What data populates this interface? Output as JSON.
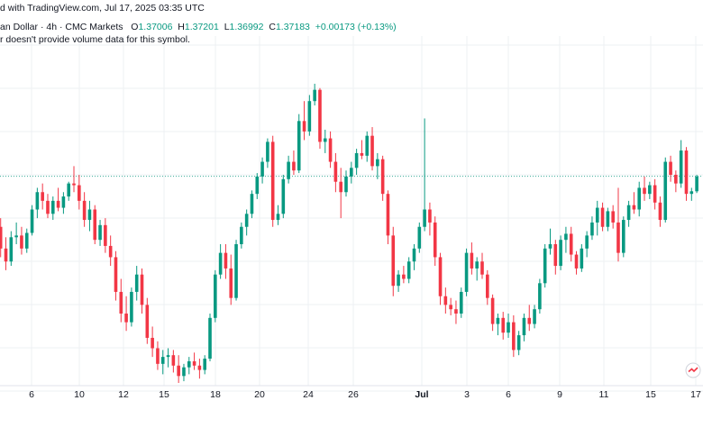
{
  "header": {
    "symbol_fragment": "an Dollar · 4h · CMC Markets",
    "published": "d with TradingView.com, Jul 17, 2025 03:35 UTC",
    "o_label": "O",
    "o_value": "1.37006",
    "h_label": "H",
    "h_value": "1.37201",
    "l_label": "L",
    "l_value": "1.36992",
    "c_label": "C",
    "c_value": "1.37183",
    "change": "+0.00173 (+0.13%)",
    "volume_note": "r doesn't provide volume data for this symbol."
  },
  "colors": {
    "up": "#089981",
    "down": "#f23645",
    "grid": "#eef0f3",
    "axis_text": "#131722",
    "price_line": "#089981"
  },
  "icons": [
    "tradingview-logo-icon"
  ],
  "chart_data": {
    "type": "candlestick",
    "title": "",
    "xlabel": "",
    "ylabel": "",
    "grid": true,
    "x_ticks": [
      "6",
      "10",
      "12",
      "15",
      "18",
      "20",
      "24",
      "26",
      "Jul",
      "3",
      "6",
      "9",
      "11",
      "15",
      "17"
    ],
    "last_price": 1.37183,
    "ylim": [
      1.348,
      1.388
    ],
    "candles": [
      [
        1.364,
        1.3667,
        1.363,
        1.366
      ],
      [
        1.366,
        1.367,
        1.3625,
        1.3635
      ],
      [
        1.3635,
        1.3648,
        1.361,
        1.362
      ],
      [
        1.362,
        1.3655,
        1.3615,
        1.3648
      ],
      [
        1.3648,
        1.3665,
        1.364,
        1.365
      ],
      [
        1.365,
        1.366,
        1.3628,
        1.3635
      ],
      [
        1.3635,
        1.3658,
        1.363,
        1.3653
      ],
      [
        1.3653,
        1.3685,
        1.365,
        1.368
      ],
      [
        1.368,
        1.3705,
        1.367,
        1.37
      ],
      [
        1.37,
        1.371,
        1.368,
        1.369
      ],
      [
        1.369,
        1.3698,
        1.367,
        1.3675
      ],
      [
        1.3675,
        1.3695,
        1.3668,
        1.369
      ],
      [
        1.369,
        1.3705,
        1.3678,
        1.3682
      ],
      [
        1.3682,
        1.37,
        1.3675,
        1.3695
      ],
      [
        1.3695,
        1.3712,
        1.369,
        1.371
      ],
      [
        1.371,
        1.373,
        1.37,
        1.3708
      ],
      [
        1.3708,
        1.372,
        1.368,
        1.369
      ],
      [
        1.369,
        1.37,
        1.366,
        1.3668
      ],
      [
        1.3668,
        1.369,
        1.3655,
        1.368
      ],
      [
        1.368,
        1.3685,
        1.364,
        1.3645
      ],
      [
        1.3645,
        1.3668,
        1.3638,
        1.3662
      ],
      [
        1.3662,
        1.367,
        1.363,
        1.3638
      ],
      [
        1.3638,
        1.365,
        1.3615,
        1.3625
      ],
      [
        1.3625,
        1.3632,
        1.3575,
        1.3585
      ],
      [
        1.3585,
        1.36,
        1.355,
        1.356
      ],
      [
        1.356,
        1.358,
        1.354,
        1.355
      ],
      [
        1.355,
        1.359,
        1.3545,
        1.3585
      ],
      [
        1.3585,
        1.3615,
        1.3575,
        1.3605
      ],
      [
        1.3605,
        1.3612,
        1.356,
        1.357
      ],
      [
        1.357,
        1.3578,
        1.3525,
        1.3532
      ],
      [
        1.3532,
        1.3545,
        1.351,
        1.352
      ],
      [
        1.352,
        1.3528,
        1.3495,
        1.3502
      ],
      [
        1.3502,
        1.3518,
        1.349,
        1.351
      ],
      [
        1.351,
        1.352,
        1.3498,
        1.3512
      ],
      [
        1.3512,
        1.3518,
        1.3492,
        1.35
      ],
      [
        1.35,
        1.3512,
        1.348,
        1.3488
      ],
      [
        1.3488,
        1.3502,
        1.3482,
        1.3498
      ],
      [
        1.3498,
        1.351,
        1.349,
        1.3505
      ],
      [
        1.3505,
        1.3515,
        1.3495,
        1.35
      ],
      [
        1.35,
        1.3508,
        1.3485,
        1.3495
      ],
      [
        1.3495,
        1.3512,
        1.349,
        1.3508
      ],
      [
        1.3508,
        1.356,
        1.3505,
        1.3555
      ],
      [
        1.3555,
        1.361,
        1.355,
        1.3605
      ],
      [
        1.3605,
        1.364,
        1.36,
        1.363
      ],
      [
        1.363,
        1.364,
        1.36,
        1.3612
      ],
      [
        1.3612,
        1.3628,
        1.357,
        1.3578
      ],
      [
        1.3578,
        1.3645,
        1.3575,
        1.364
      ],
      [
        1.364,
        1.3665,
        1.3635,
        1.366
      ],
      [
        1.366,
        1.368,
        1.365,
        1.3675
      ],
      [
        1.3675,
        1.3702,
        1.367,
        1.3698
      ],
      [
        1.3698,
        1.3722,
        1.3692,
        1.3718
      ],
      [
        1.3718,
        1.374,
        1.371,
        1.3735
      ],
      [
        1.3735,
        1.3762,
        1.3728,
        1.3758
      ],
      [
        1.3758,
        1.3765,
        1.366,
        1.3668
      ],
      [
        1.3668,
        1.3685,
        1.3662,
        1.3675
      ],
      [
        1.3675,
        1.372,
        1.367,
        1.3715
      ],
      [
        1.3715,
        1.3742,
        1.371,
        1.3735
      ],
      [
        1.3735,
        1.3748,
        1.372,
        1.3725
      ],
      [
        1.3725,
        1.379,
        1.3722,
        1.3782
      ],
      [
        1.3782,
        1.3805,
        1.376,
        1.377
      ],
      [
        1.377,
        1.3812,
        1.3765,
        1.3805
      ],
      [
        1.3805,
        1.3825,
        1.38,
        1.3818
      ],
      [
        1.3818,
        1.382,
        1.375,
        1.3758
      ],
      [
        1.3758,
        1.3772,
        1.3745,
        1.3762
      ],
      [
        1.3762,
        1.377,
        1.3728,
        1.3735
      ],
      [
        1.3735,
        1.3745,
        1.37,
        1.3712
      ],
      [
        1.3712,
        1.3728,
        1.367,
        1.37
      ],
      [
        1.37,
        1.3725,
        1.3695,
        1.3718
      ],
      [
        1.3718,
        1.3735,
        1.371,
        1.3728
      ],
      [
        1.3728,
        1.375,
        1.372,
        1.3745
      ],
      [
        1.3745,
        1.376,
        1.3738,
        1.3742
      ],
      [
        1.3742,
        1.377,
        1.3735,
        1.3765
      ],
      [
        1.3765,
        1.3775,
        1.3725,
        1.373
      ],
      [
        1.373,
        1.3745,
        1.3715,
        1.3738
      ],
      [
        1.3738,
        1.3742,
        1.369,
        1.3698
      ],
      [
        1.3698,
        1.3702,
        1.364,
        1.365
      ],
      [
        1.365,
        1.366,
        1.358,
        1.3592
      ],
      [
        1.3592,
        1.361,
        1.3585,
        1.3605
      ],
      [
        1.3605,
        1.3615,
        1.3595,
        1.36
      ],
      [
        1.36,
        1.3625,
        1.3595,
        1.362
      ],
      [
        1.362,
        1.364,
        1.361,
        1.3635
      ],
      [
        1.3635,
        1.3665,
        1.363,
        1.366
      ],
      [
        1.366,
        1.3785,
        1.3655,
        1.368
      ],
      [
        1.368,
        1.3688,
        1.365,
        1.3665
      ],
      [
        1.3665,
        1.3672,
        1.3615,
        1.3625
      ],
      [
        1.3625,
        1.363,
        1.357,
        1.358
      ],
      [
        1.358,
        1.359,
        1.356,
        1.357
      ],
      [
        1.357,
        1.3578,
        1.3558,
        1.3565
      ],
      [
        1.3565,
        1.3575,
        1.3548,
        1.356
      ],
      [
        1.356,
        1.359,
        1.3555,
        1.3585
      ],
      [
        1.3585,
        1.3635,
        1.358,
        1.363
      ],
      [
        1.363,
        1.3642,
        1.3605,
        1.3612
      ],
      [
        1.3612,
        1.3625,
        1.3598,
        1.362
      ],
      [
        1.362,
        1.363,
        1.36,
        1.3605
      ],
      [
        1.3605,
        1.361,
        1.357,
        1.3578
      ],
      [
        1.3578,
        1.3582,
        1.354,
        1.3548
      ],
      [
        1.3548,
        1.356,
        1.3535,
        1.3555
      ],
      [
        1.3555,
        1.3562,
        1.353,
        1.3538
      ],
      [
        1.3538,
        1.356,
        1.3532,
        1.355
      ],
      [
        1.355,
        1.3558,
        1.351,
        1.3518
      ],
      [
        1.3518,
        1.354,
        1.3512,
        1.3535
      ],
      [
        1.3535,
        1.356,
        1.3528,
        1.3555
      ],
      [
        1.3555,
        1.357,
        1.354,
        1.3548
      ],
      [
        1.3548,
        1.357,
        1.3543,
        1.3565
      ],
      [
        1.3565,
        1.36,
        1.356,
        1.3595
      ],
      [
        1.3595,
        1.364,
        1.359,
        1.3635
      ],
      [
        1.3635,
        1.3658,
        1.3628,
        1.364
      ],
      [
        1.364,
        1.3645,
        1.3605,
        1.3615
      ],
      [
        1.3615,
        1.365,
        1.361,
        1.3645
      ],
      [
        1.3645,
        1.366,
        1.363,
        1.3652
      ],
      [
        1.3652,
        1.366,
        1.362,
        1.3628
      ],
      [
        1.3628,
        1.3632,
        1.3605,
        1.3612
      ],
      [
        1.3612,
        1.364,
        1.3608,
        1.3635
      ],
      [
        1.3635,
        1.3655,
        1.3625,
        1.365
      ],
      [
        1.365,
        1.3672,
        1.3645,
        1.3665
      ],
      [
        1.3665,
        1.369,
        1.365,
        1.3682
      ],
      [
        1.3682,
        1.3688,
        1.3655,
        1.366
      ],
      [
        1.366,
        1.3682,
        1.3655,
        1.3678
      ],
      [
        1.3678,
        1.3685,
        1.3658,
        1.3665
      ],
      [
        1.3665,
        1.3705,
        1.362,
        1.363
      ],
      [
        1.363,
        1.3672,
        1.3625,
        1.3668
      ],
      [
        1.3668,
        1.369,
        1.366,
        1.3685
      ],
      [
        1.3685,
        1.37,
        1.3675,
        1.368
      ],
      [
        1.368,
        1.3712,
        1.3672,
        1.3705
      ],
      [
        1.3705,
        1.3718,
        1.369,
        1.3698
      ],
      [
        1.3698,
        1.3712,
        1.3692,
        1.3708
      ],
      [
        1.3708,
        1.3715,
        1.368,
        1.3688
      ],
      [
        1.3688,
        1.3695,
        1.366,
        1.3668
      ],
      [
        1.3668,
        1.374,
        1.3665,
        1.3735
      ],
      [
        1.3735,
        1.3742,
        1.3712,
        1.372
      ],
      [
        1.372,
        1.3725,
        1.37,
        1.371
      ],
      [
        1.371,
        1.376,
        1.3705,
        1.3748
      ],
      [
        1.3748,
        1.3752,
        1.369,
        1.3698
      ],
      [
        1.3698,
        1.3705,
        1.369,
        1.3701
      ],
      [
        1.3701,
        1.372,
        1.3699,
        1.3718
      ]
    ]
  }
}
